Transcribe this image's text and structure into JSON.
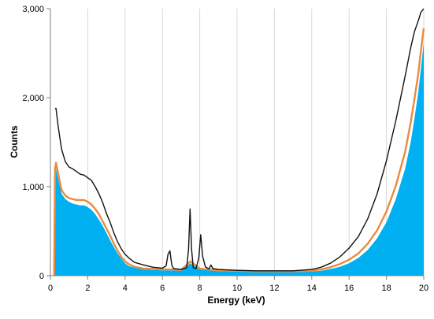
{
  "chart_data": {
    "type": "area",
    "xlabel": "Energy (keV)",
    "ylabel": "Counts",
    "xlim": [
      0,
      20
    ],
    "ylim": [
      0,
      3000
    ],
    "x_ticks": [
      0,
      2,
      4,
      6,
      8,
      10,
      12,
      14,
      16,
      18,
      20
    ],
    "y_ticks": [
      0,
      1000,
      2000,
      3000
    ],
    "y_tick_labels": [
      "0",
      "1,000",
      "2,000",
      "3,000"
    ],
    "grid": "vertical",
    "legend": "none",
    "series": [
      {
        "style": "line",
        "color": "#111111",
        "x": [
          0.25,
          0.3,
          0.4,
          0.5,
          0.6,
          0.8,
          1.0,
          1.2,
          1.4,
          1.6,
          1.8,
          2.0,
          2.2,
          2.4,
          2.6,
          2.8,
          3.0,
          3.2,
          3.4,
          3.6,
          3.8,
          4.0,
          4.2,
          4.5,
          5.0,
          5.5,
          6.0,
          6.2,
          6.3,
          6.4,
          6.5,
          6.6,
          7.0,
          7.3,
          7.4,
          7.48,
          7.56,
          7.65,
          7.8,
          7.95,
          8.05,
          8.15,
          8.3,
          8.5,
          8.6,
          8.7,
          9.0,
          9.5,
          10,
          11,
          12,
          13,
          14,
          14.5,
          15,
          15.5,
          16,
          16.5,
          17,
          17.5,
          18,
          18.5,
          19,
          19.3,
          19.5,
          19.7,
          19.85,
          20.0
        ],
        "y": [
          1880,
          1880,
          1700,
          1560,
          1420,
          1280,
          1220,
          1200,
          1170,
          1140,
          1130,
          1100,
          1070,
          1000,
          920,
          820,
          700,
          600,
          480,
          380,
          300,
          240,
          200,
          150,
          120,
          95,
          85,
          110,
          240,
          280,
          120,
          80,
          70,
          90,
          300,
          750,
          300,
          90,
          80,
          200,
          460,
          220,
          100,
          75,
          120,
          80,
          70,
          65,
          60,
          55,
          55,
          55,
          70,
          95,
          140,
          210,
          310,
          440,
          640,
          920,
          1290,
          1740,
          2240,
          2560,
          2740,
          2860,
          2960,
          3050
        ]
      },
      {
        "style": "line",
        "color": "#E98B3E",
        "x": [
          0.2,
          0.25,
          0.3,
          0.4,
          0.5,
          0.6,
          0.8,
          1.0,
          1.2,
          1.4,
          1.6,
          1.8,
          2.0,
          2.2,
          2.4,
          2.6,
          2.8,
          3.0,
          3.2,
          3.4,
          3.6,
          3.8,
          4.0,
          4.2,
          4.5,
          5.0,
          5.5,
          6.0,
          6.4,
          7.0,
          7.5,
          8.0,
          9.0,
          10,
          11,
          12,
          13,
          14,
          14.5,
          15,
          15.5,
          16,
          16.5,
          17,
          17.5,
          18,
          18.5,
          19,
          19.3,
          19.5,
          19.7,
          19.85,
          20.0
        ],
        "y": [
          0,
          1200,
          1270,
          1160,
          1060,
          960,
          900,
          870,
          860,
          850,
          850,
          850,
          830,
          800,
          750,
          690,
          610,
          530,
          450,
          360,
          280,
          210,
          160,
          130,
          100,
          80,
          75,
          70,
          70,
          65,
          160,
          80,
          60,
          55,
          50,
          50,
          50,
          55,
          70,
          95,
          130,
          180,
          250,
          360,
          510,
          720,
          1010,
          1390,
          1720,
          1980,
          2260,
          2530,
          2780
        ]
      },
      {
        "style": "area",
        "color": "#00B0F0",
        "x": [
          0.2,
          0.25,
          0.3,
          0.4,
          0.5,
          0.6,
          0.8,
          1.0,
          1.2,
          1.4,
          1.6,
          1.8,
          2.0,
          2.2,
          2.4,
          2.6,
          2.8,
          3.0,
          3.2,
          3.4,
          3.6,
          3.8,
          4.0,
          4.2,
          4.5,
          5.0,
          5.5,
          6.0,
          6.4,
          7.0,
          7.5,
          8.0,
          9.0,
          10,
          11,
          12,
          13,
          14,
          14.5,
          15,
          15.5,
          16,
          16.5,
          17,
          17.5,
          18,
          18.5,
          19,
          19.3,
          19.5,
          19.7,
          19.85,
          20.0
        ],
        "y": [
          0,
          1150,
          1200,
          1100,
          1010,
          920,
          860,
          830,
          810,
          800,
          790,
          790,
          770,
          740,
          690,
          630,
          560,
          480,
          400,
          320,
          250,
          190,
          140,
          110,
          90,
          70,
          65,
          60,
          60,
          55,
          140,
          70,
          50,
          45,
          40,
          40,
          40,
          45,
          55,
          75,
          100,
          140,
          200,
          290,
          420,
          600,
          860,
          1200,
          1500,
          1760,
          2050,
          2330,
          2620
        ]
      }
    ]
  }
}
